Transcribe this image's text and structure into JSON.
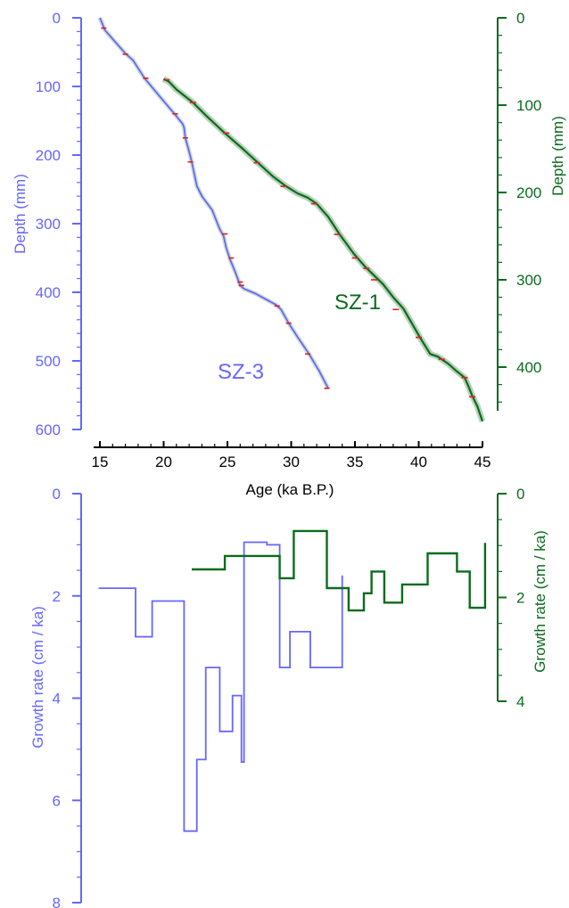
{
  "colors": {
    "sz3": "#6666ff",
    "sz1": "#0b6b1e",
    "age_axis": "#000000",
    "date_marker": "#e02020",
    "uncertainty_band": "#a9c7a9"
  },
  "chart_data": [
    {
      "type": "line",
      "title": "",
      "xlabel": "Age (ka B.P.)",
      "xlim": [
        14.5,
        45
      ],
      "x_ticks": [
        15,
        20,
        25,
        30,
        35,
        40,
        45
      ],
      "grid": false,
      "left_axis": {
        "label": "Depth (mm)",
        "ylim": [
          0,
          600
        ],
        "ticks": [
          0,
          100,
          200,
          300,
          400,
          500,
          600
        ],
        "inverted": true
      },
      "right_axis": {
        "label": "Depth (mm)",
        "ylim": [
          0,
          450
        ],
        "ticks": [
          0,
          100,
          200,
          300,
          400
        ],
        "inverted": true
      },
      "series": [
        {
          "name": "SZ-3",
          "axis": "left",
          "x": [
            15.0,
            15.4,
            16.2,
            17.0,
            17.6,
            18.5,
            19.4,
            20.3,
            20.9,
            21.5,
            21.6,
            21.7,
            22.0,
            22.2,
            22.6,
            23.0,
            23.8,
            24.4,
            24.7,
            24.9,
            25.2,
            25.6,
            25.9,
            26.0,
            26.3,
            27.2,
            27.8,
            28.8,
            29.2,
            29.8,
            30.5,
            31.4,
            32.2,
            32.9
          ],
          "y": [
            0,
            18,
            35,
            52,
            62,
            88,
            108,
            128,
            141,
            155,
            160,
            175,
            195,
            210,
            245,
            260,
            280,
            308,
            318,
            335,
            352,
            370,
            385,
            390,
            395,
            402,
            408,
            418,
            425,
            445,
            465,
            490,
            515,
            540
          ],
          "markers_x": [
            15.3,
            17.0,
            18.6,
            20.9,
            21.7,
            22.1,
            24.8,
            25.3,
            26.0,
            26.1,
            28.9,
            29.8,
            31.3,
            32.8
          ],
          "markers_y": [
            15,
            53,
            88,
            140,
            175,
            210,
            315,
            350,
            385,
            390,
            420,
            445,
            490,
            540
          ]
        },
        {
          "name": "SZ-1",
          "axis": "right",
          "x": [
            20.0,
            20.4,
            21.0,
            22.3,
            23.4,
            24.8,
            26.2,
            27.4,
            28.6,
            29.6,
            30.5,
            31.3,
            32.0,
            32.9,
            33.8,
            34.9,
            35.8,
            37.2,
            38.0,
            38.8,
            40.1,
            40.9,
            41.5,
            42.3,
            43.0,
            43.6,
            43.9,
            44.2,
            44.6,
            45.0
          ],
          "y": [
            70,
            73,
            82,
            97,
            113,
            132,
            150,
            166,
            182,
            193,
            201,
            206,
            213,
            228,
            248,
            270,
            285,
            305,
            320,
            333,
            366,
            385,
            388,
            396,
            405,
            412,
            422,
            433,
            445,
            462
          ],
          "markers_x": [
            20.2,
            22.3,
            24.9,
            27.3,
            29.4,
            31.8,
            33.6,
            35.0,
            35.9,
            36.5,
            38.2,
            40.0,
            41.8,
            43.6,
            44.2
          ],
          "markers_y": [
            71,
            97,
            132,
            166,
            193,
            213,
            248,
            275,
            287,
            300,
            334,
            366,
            391,
            412,
            434
          ]
        }
      ],
      "annotations": [
        "SZ-1",
        "SZ-3"
      ]
    },
    {
      "type": "line",
      "step": true,
      "title": "",
      "xlabel": "",
      "xlim": [
        14.5,
        45
      ],
      "grid": false,
      "left_axis": {
        "label": "Growth rate (cm / ka)",
        "ylim": [
          0,
          8
        ],
        "ticks": [
          0,
          2,
          4,
          6,
          8
        ],
        "inverted": true
      },
      "right_axis": {
        "label": "Growth rate (cm / ka)",
        "ylim": [
          0,
          4
        ],
        "ticks": [
          0,
          2,
          4
        ],
        "inverted": true
      },
      "series": [
        {
          "name": "SZ-3",
          "axis": "left",
          "x": [
            14.9,
            17.8,
            17.8,
            19.1,
            19.1,
            21.6,
            21.6,
            22.6,
            22.6,
            23.3,
            23.3,
            24.4,
            24.4,
            25.4,
            25.4,
            26.1,
            26.1,
            26.3,
            26.3,
            28.1,
            28.1,
            29.1,
            29.1,
            29.9,
            29.9,
            31.5,
            31.5,
            32.5,
            32.5,
            34.0,
            34.0
          ],
          "y": [
            1.85,
            1.85,
            2.8,
            2.8,
            2.1,
            2.1,
            6.6,
            6.6,
            5.2,
            5.2,
            3.4,
            3.4,
            4.65,
            4.65,
            3.95,
            3.95,
            5.25,
            5.25,
            0.95,
            0.95,
            1.0,
            1.0,
            3.4,
            3.4,
            2.7,
            2.7,
            3.4,
            3.4,
            3.4,
            3.4,
            1.6
          ]
        },
        {
          "name": "SZ-1",
          "axis": "right",
          "x": [
            22.2,
            24.8,
            24.8,
            27.7,
            27.7,
            29.1,
            29.1,
            30.2,
            30.2,
            32.8,
            32.8,
            34.5,
            34.5,
            35.7,
            35.7,
            36.3,
            36.3,
            37.3,
            37.3,
            38.7,
            38.7,
            40.7,
            40.7,
            43.0,
            43.0,
            44.0,
            44.0,
            45.2,
            45.2
          ],
          "y": [
            1.46,
            1.46,
            1.2,
            1.2,
            1.2,
            1.2,
            1.63,
            1.63,
            0.72,
            0.72,
            1.82,
            1.82,
            2.25,
            2.25,
            1.92,
            1.92,
            1.5,
            1.5,
            2.1,
            2.1,
            1.75,
            1.75,
            1.15,
            1.15,
            1.5,
            1.5,
            2.2,
            2.2,
            0.95
          ]
        }
      ]
    }
  ]
}
